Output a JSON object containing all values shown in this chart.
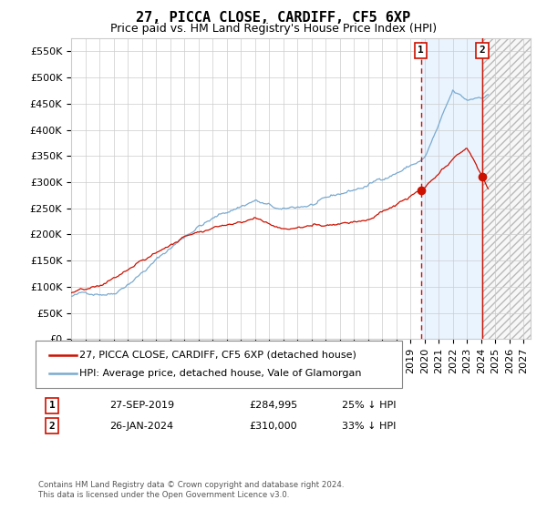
{
  "title": "27, PICCA CLOSE, CARDIFF, CF5 6XP",
  "subtitle": "Price paid vs. HM Land Registry's House Price Index (HPI)",
  "ylim": [
    0,
    575000
  ],
  "yticks": [
    0,
    50000,
    100000,
    150000,
    200000,
    250000,
    300000,
    350000,
    400000,
    450000,
    500000,
    550000
  ],
  "xlim_start": 1995.0,
  "xlim_end": 2027.5,
  "hpi_color": "#7aaad0",
  "price_color": "#cc1100",
  "vline1_color": "#cc1100",
  "vline2_color": "#cc1100",
  "bg_fill_color": "#ddeeff",
  "bg_hatch_color": "#dddddd",
  "sale1_x": 2019.74,
  "sale1_price": 284995,
  "sale2_x": 2024.07,
  "sale2_price": 310000,
  "data_end_x": 2024.5,
  "legend_label1": "27, PICCA CLOSE, CARDIFF, CF5 6XP (detached house)",
  "legend_label2": "HPI: Average price, detached house, Vale of Glamorgan",
  "annotation1_date": "27-SEP-2019",
  "annotation1_price": "£284,995",
  "annotation1_pct": "25% ↓ HPI",
  "annotation2_date": "26-JAN-2024",
  "annotation2_price": "£310,000",
  "annotation2_pct": "33% ↓ HPI",
  "footer": "Contains HM Land Registry data © Crown copyright and database right 2024.\nThis data is licensed under the Open Government Licence v3.0.",
  "title_fontsize": 11,
  "subtitle_fontsize": 9,
  "tick_fontsize": 8,
  "legend_fontsize": 8,
  "annot_fontsize": 8
}
